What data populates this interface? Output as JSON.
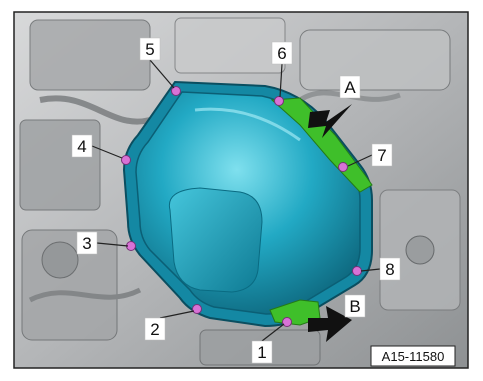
{
  "figure": {
    "reference_code": "A15-11580",
    "callouts": [
      {
        "text": "1"
      },
      {
        "text": "2"
      },
      {
        "text": "3"
      },
      {
        "text": "4"
      },
      {
        "text": "5"
      },
      {
        "text": "6"
      },
      {
        "text": "7"
      },
      {
        "text": "8"
      },
      {
        "text": "A"
      },
      {
        "text": "B"
      }
    ]
  },
  "colors": {
    "pan_fill": "#1fa3c0",
    "pan_highlight": "#63d4e6",
    "pan_shadow": "#0d6f86",
    "bolt": "#d872d6",
    "sealant_green": "#3fbf2a",
    "engine_gray": "#b9bbbd",
    "arrow_black": "#111111"
  }
}
